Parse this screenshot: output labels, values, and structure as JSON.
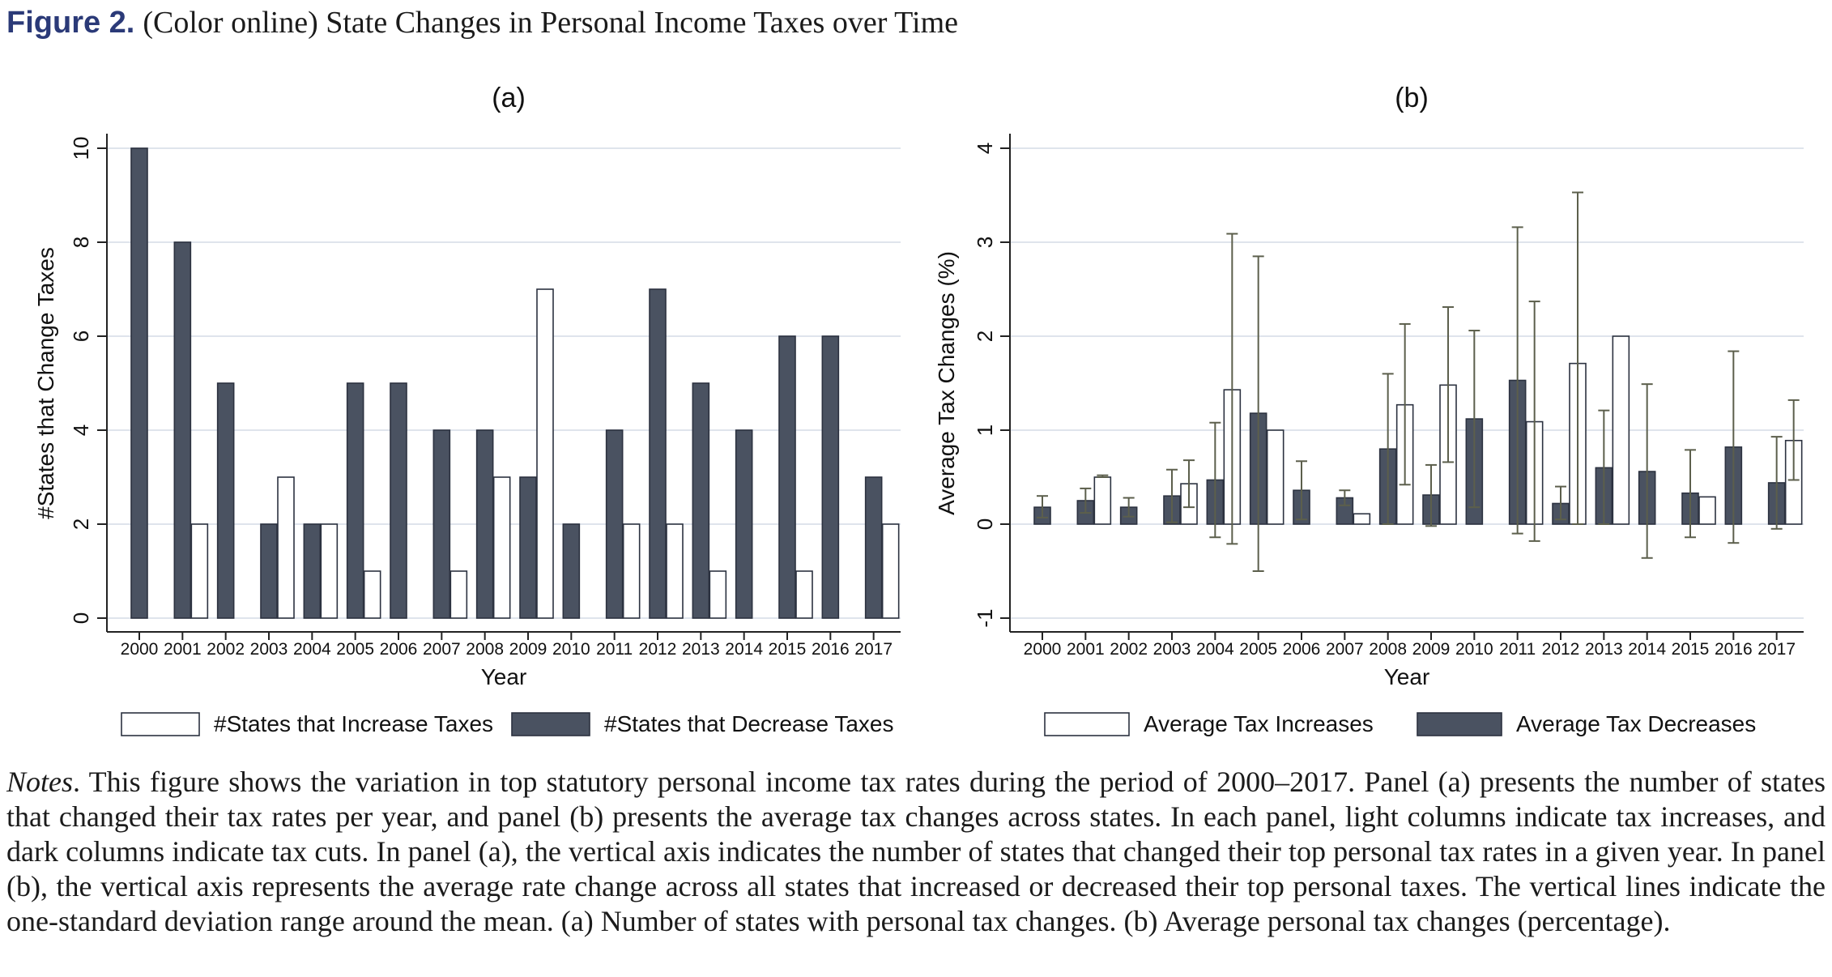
{
  "figure": {
    "label": "Figure 2.",
    "title": "(Color online) State Changes in Personal Income Taxes over Time"
  },
  "colors": {
    "dark": "#4a5261",
    "light": "#ffffff",
    "grid": "#dfe4ec",
    "errorbar": "#5c5f4c"
  },
  "chart_data": [
    {
      "type": "bar",
      "panel_title": "(a)",
      "xlabel": "Year",
      "ylabel": "#States that Change Taxes",
      "ylim": [
        0,
        10
      ],
      "yticks": [
        0,
        2,
        4,
        6,
        8,
        10
      ],
      "grid": true,
      "legend_position": "bottom",
      "categories": [
        "2000",
        "2001",
        "2002",
        "2003",
        "2004",
        "2005",
        "2006",
        "2007",
        "2008",
        "2009",
        "2010",
        "2011",
        "2012",
        "2013",
        "2014",
        "2015",
        "2016",
        "2017"
      ],
      "series": [
        {
          "name": "#States that Decrease Taxes",
          "color": "dark",
          "values": [
            10,
            8,
            5,
            2,
            2,
            5,
            5,
            4,
            4,
            3,
            2,
            4,
            7,
            5,
            4,
            6,
            6,
            3
          ]
        },
        {
          "name": "#States that Increase Taxes",
          "color": "light",
          "values": [
            0,
            2,
            0,
            3,
            2,
            1,
            0,
            1,
            3,
            7,
            0,
            2,
            2,
            1,
            0,
            1,
            0,
            2
          ]
        }
      ],
      "legend": [
        "#States that Increase Taxes",
        "#States that Decrease Taxes"
      ]
    },
    {
      "type": "bar",
      "panel_title": "(b)",
      "xlabel": "Year",
      "ylabel": "Average Tax Changes (%)",
      "ylim": [
        -1,
        4
      ],
      "yticks": [
        -1,
        0,
        1,
        2,
        3,
        4
      ],
      "grid": true,
      "legend_position": "bottom",
      "categories": [
        "2000",
        "2001",
        "2002",
        "2003",
        "2004",
        "2005",
        "2006",
        "2007",
        "2008",
        "2009",
        "2010",
        "2011",
        "2012",
        "2013",
        "2014",
        "2015",
        "2016",
        "2017"
      ],
      "series": [
        {
          "name": "Average Tax Decreases",
          "color": "dark",
          "values": [
            0.18,
            0.25,
            0.18,
            0.3,
            0.47,
            1.18,
            0.36,
            0.28,
            0.8,
            0.31,
            1.12,
            1.53,
            0.22,
            0.6,
            0.56,
            0.33,
            0.82,
            0.44
          ],
          "err_low": [
            0.07,
            0.12,
            0.08,
            0.02,
            -0.14,
            -0.5,
            0.05,
            0.2,
            0.0,
            -0.02,
            0.18,
            -0.1,
            0.05,
            0.0,
            -0.36,
            -0.14,
            -0.2,
            -0.05
          ],
          "err_high": [
            0.3,
            0.38,
            0.28,
            0.58,
            1.08,
            2.85,
            0.67,
            0.36,
            1.6,
            0.63,
            2.06,
            3.16,
            0.4,
            1.21,
            1.49,
            0.79,
            1.84,
            0.93
          ]
        },
        {
          "name": "Average Tax Increases",
          "color": "light",
          "values": [
            null,
            0.5,
            null,
            0.43,
            1.43,
            1.0,
            null,
            0.11,
            1.27,
            1.48,
            null,
            1.09,
            1.71,
            2.0,
            null,
            0.29,
            null,
            0.89
          ],
          "err_low": [
            null,
            0.5,
            null,
            0.18,
            -0.21,
            1.0,
            null,
            0.11,
            0.42,
            0.66,
            null,
            -0.18,
            0.0,
            2.0,
            null,
            0.29,
            null,
            0.47
          ],
          "err_high": [
            null,
            0.52,
            null,
            0.68,
            3.09,
            1.0,
            null,
            0.11,
            2.13,
            2.31,
            null,
            2.37,
            3.53,
            2.0,
            null,
            0.29,
            null,
            1.32
          ]
        }
      ],
      "legend": [
        "Average Tax Increases",
        "Average Tax Decreases"
      ]
    }
  ],
  "notes": {
    "label": "Notes",
    "text": ". This figure shows the variation in top statutory personal income tax rates during the period of 2000–2017. Panel (a) presents the number of states that changed their tax rates per year, and panel (b) presents the average tax changes across states. In each panel, light columns indicate tax increases, and dark columns indicate tax cuts. In panel (a), the vertical axis indicates the number of states that changed their top personal tax rates in a given year. In panel (b), the vertical axis represents the average rate change across all states that increased or decreased their top personal taxes. The vertical lines indicate the one-standard deviation range around the mean. (a) Number of states with personal tax changes. (b) Average personal tax changes (percentage)."
  }
}
